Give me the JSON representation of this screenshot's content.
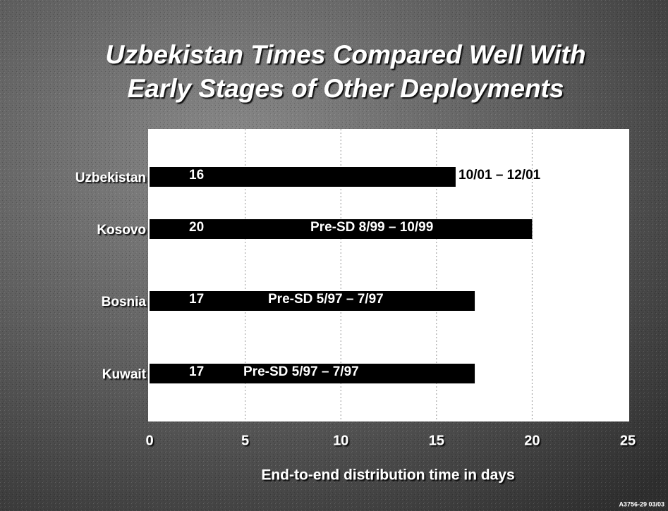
{
  "chart_data": {
    "type": "bar",
    "orientation": "horizontal",
    "title": [
      "Uzbekistan Times Compared Well With",
      "Early Stages of Other Deployments"
    ],
    "categories": [
      "Uzbekistan",
      "Kosovo",
      "Bosnia",
      "Kuwait"
    ],
    "values": [
      16,
      20,
      17,
      17
    ],
    "annotations": [
      "10/01 – 12/01",
      "Pre-SD 8/99 – 10/99",
      "Pre-SD 5/97 – 7/97",
      "Pre-SD 5/97 – 7/97"
    ],
    "color": "#000000",
    "xlim": [
      0,
      25
    ],
    "xticks": [
      0,
      5,
      10,
      15,
      20,
      25
    ],
    "grid": true,
    "xlabel": "End-to-end distribution time in days",
    "footnote": "A3756-29 03/03"
  }
}
